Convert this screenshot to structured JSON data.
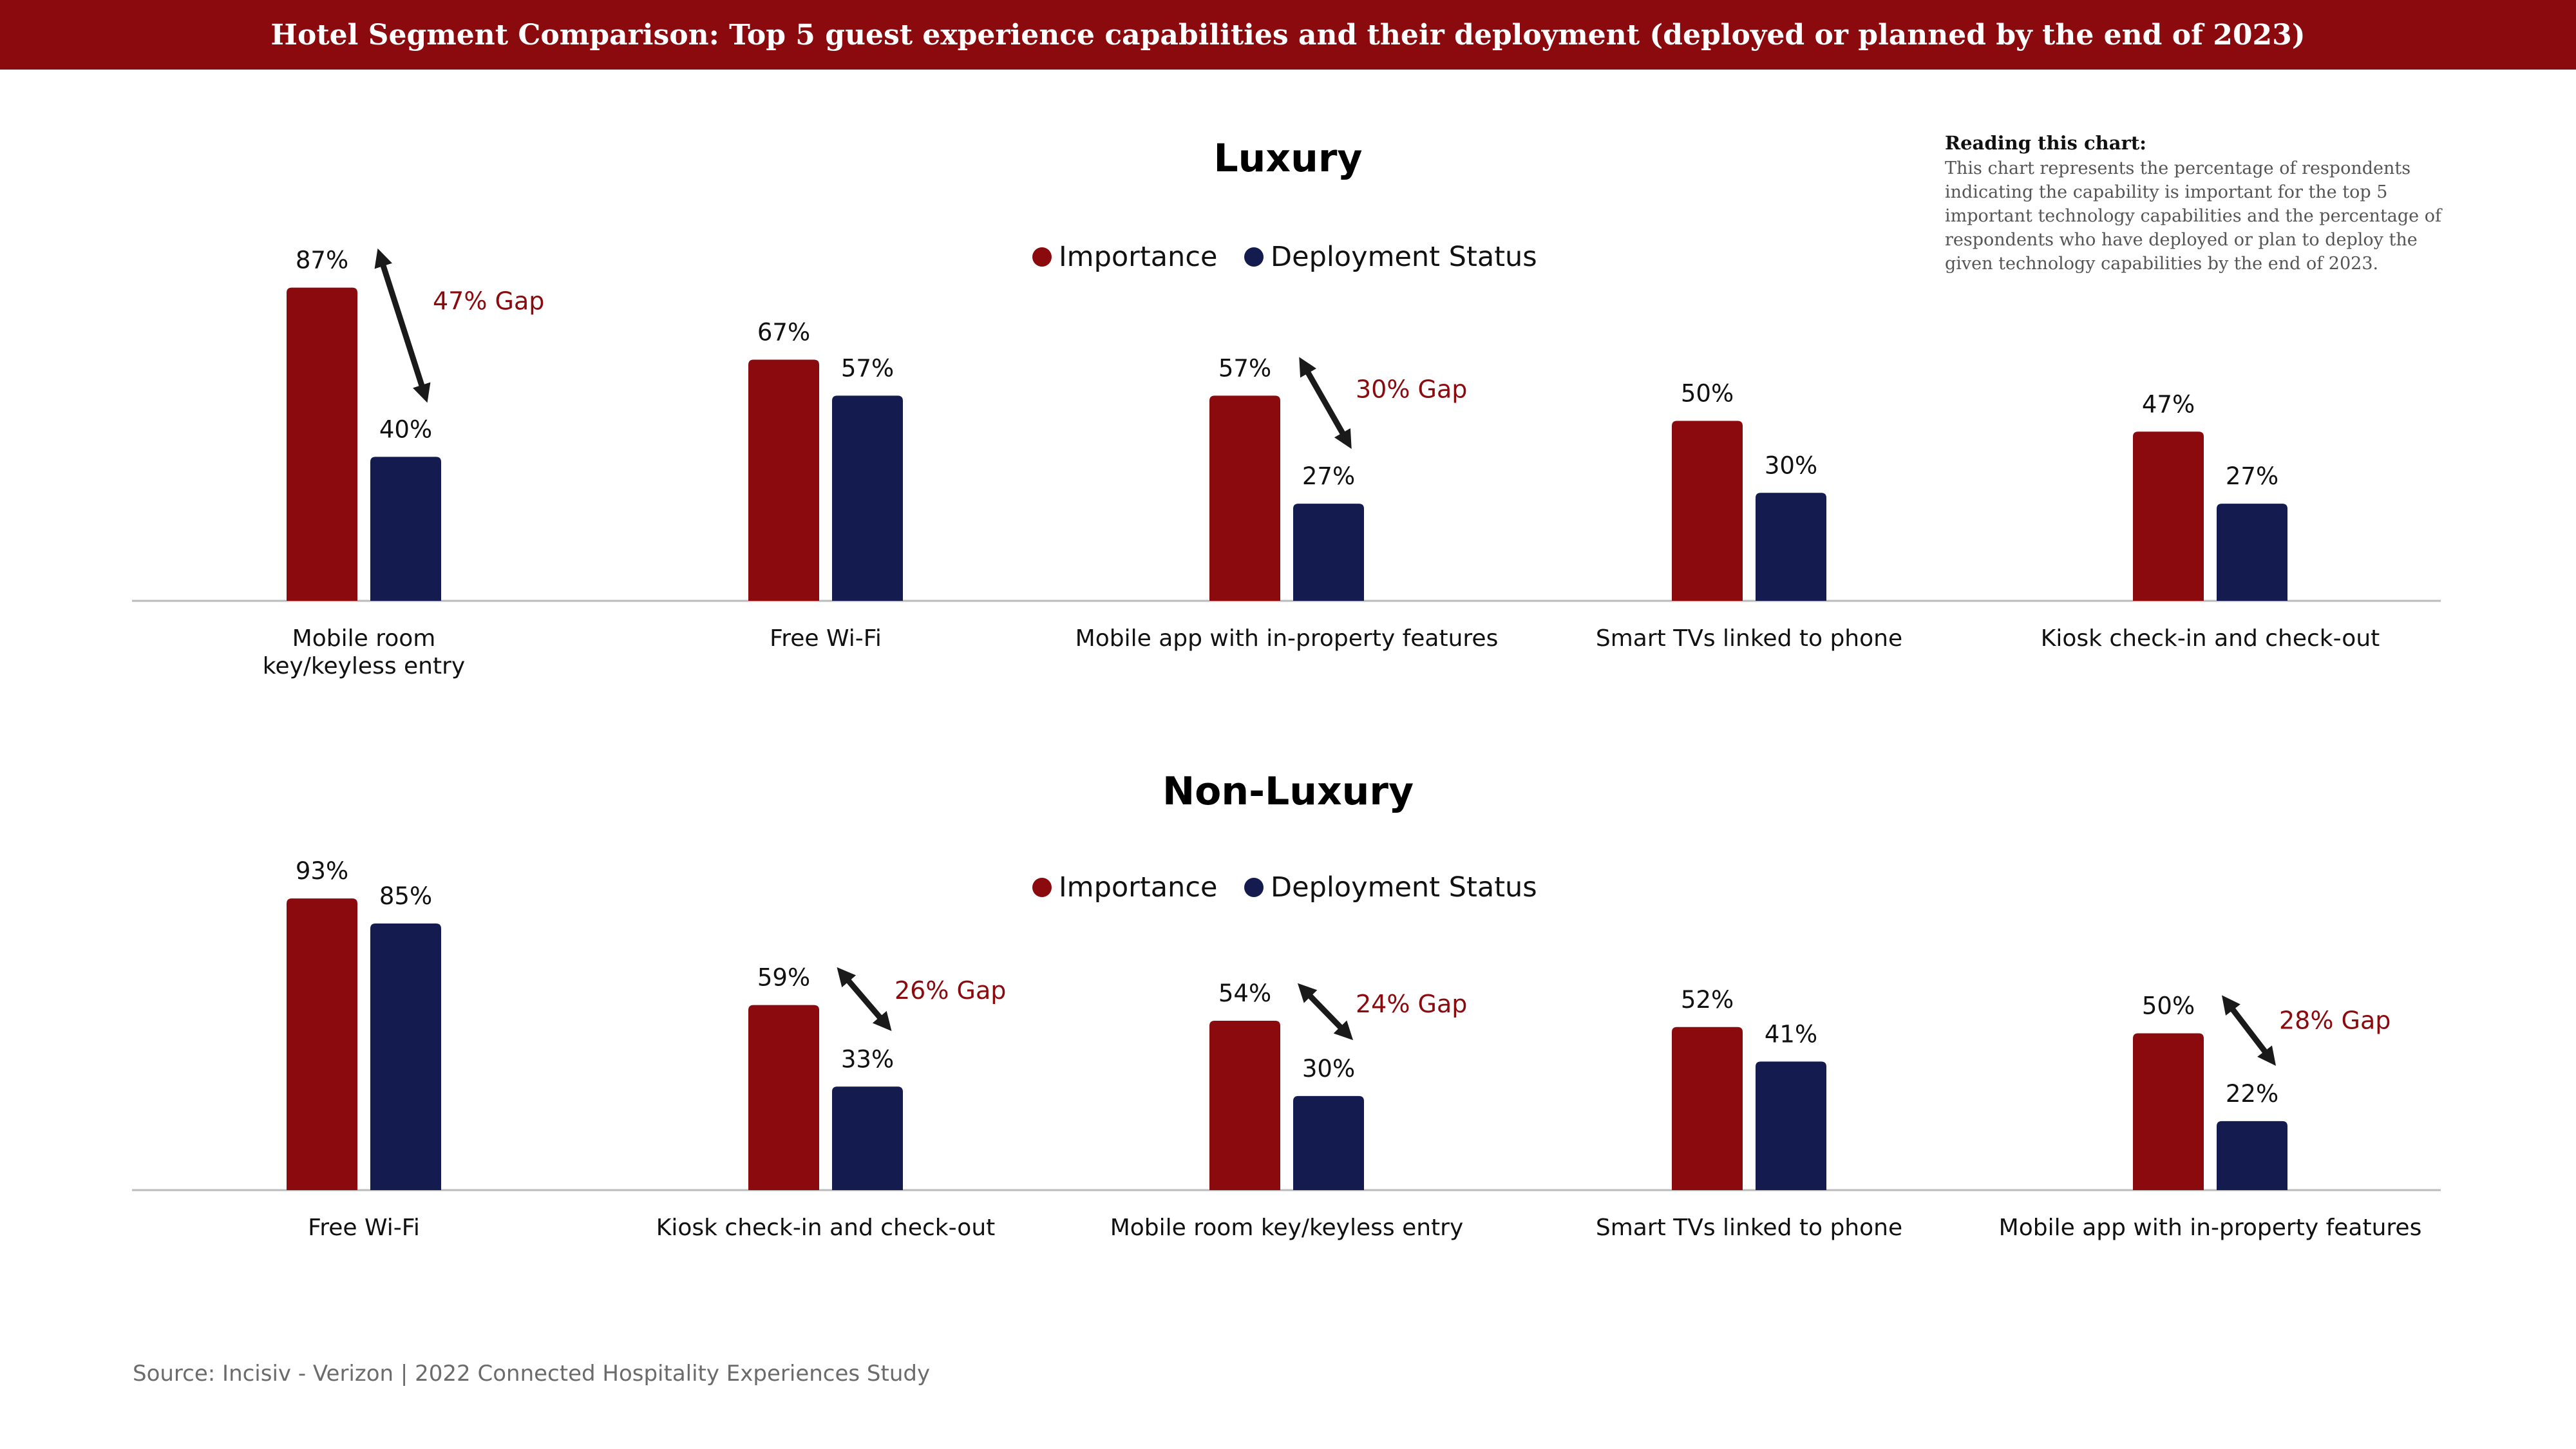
{
  "header": {
    "title": "Hotel Segment Comparison: Top 5 guest experience capabilities and their deployment (deployed or planned by the end of 2023)"
  },
  "reading_note": {
    "title": "Reading this chart:",
    "body": "This chart represents the percentage of respondents indicating the capability is important for the top 5 important technology capabilities and the percentage of respondents who have deployed or plan to deploy the given technology capabilities by the end of 2023."
  },
  "source": "Source: Incisiv - Verizon | 2022 Connected Hospitality Experiences Study",
  "colors": {
    "importance": "#8b0a0e",
    "deployment": "#131b4f",
    "gap_text": "#8b0a0e",
    "arrow": "#1a1a1a",
    "axis": "#bbbbbb"
  },
  "chart_data": [
    {
      "type": "bar",
      "title": "Luxury",
      "legend": [
        "Importance",
        "Deployment Status"
      ],
      "legend_position": "top-center",
      "categories": [
        "Mobile room key/keyless entry",
        "Free Wi-Fi",
        "Mobile app with in-property features",
        "Smart TVs linked to phone",
        "Kiosk check-in and check-out"
      ],
      "category_lines": [
        [
          "Mobile room",
          "key/keyless entry"
        ],
        [
          "Free Wi-Fi"
        ],
        [
          "Mobile app with in-property features"
        ],
        [
          "Smart TVs linked to phone"
        ],
        [
          "Kiosk check-in and check-out"
        ]
      ],
      "series": [
        {
          "name": "Importance",
          "values": [
            87,
            67,
            57,
            50,
            47
          ],
          "labels": [
            "87%",
            "67%",
            "57%",
            "50%",
            "47%"
          ]
        },
        {
          "name": "Deployment Status",
          "values": [
            40,
            57,
            27,
            30,
            27
          ],
          "labels": [
            "40%",
            "57%",
            "27%",
            "30%",
            "27%"
          ]
        }
      ],
      "gaps": [
        {
          "category_index": 0,
          "label": "47% Gap"
        },
        {
          "category_index": 2,
          "label": "30% Gap"
        }
      ],
      "ylim": [
        0,
        100
      ],
      "grid": false
    },
    {
      "type": "bar",
      "title": "Non-Luxury",
      "legend": [
        "Importance",
        "Deployment Status"
      ],
      "legend_position": "top-center",
      "categories": [
        "Free Wi-Fi",
        "Kiosk check-in and check-out",
        "Mobile room key/keyless entry",
        "Smart TVs linked to phone",
        "Mobile app with in-property features"
      ],
      "category_lines": [
        [
          "Free Wi-Fi"
        ],
        [
          "Kiosk check-in and check-out"
        ],
        [
          "Mobile room key/keyless entry"
        ],
        [
          "Smart TVs linked to phone"
        ],
        [
          "Mobile app with in-property features"
        ]
      ],
      "series": [
        {
          "name": "Importance",
          "values": [
            93,
            59,
            54,
            52,
            50
          ],
          "labels": [
            "93%",
            "59%",
            "54%",
            "52%",
            "50%"
          ]
        },
        {
          "name": "Deployment Status",
          "values": [
            85,
            33,
            30,
            41,
            22
          ],
          "labels": [
            "85%",
            "33%",
            "30%",
            "41%",
            "22%"
          ]
        }
      ],
      "gaps": [
        {
          "category_index": 1,
          "label": "26% Gap"
        },
        {
          "category_index": 2,
          "label": "24% Gap"
        },
        {
          "category_index": 4,
          "label": "28% Gap"
        }
      ],
      "ylim": [
        0,
        100
      ],
      "grid": false
    }
  ]
}
